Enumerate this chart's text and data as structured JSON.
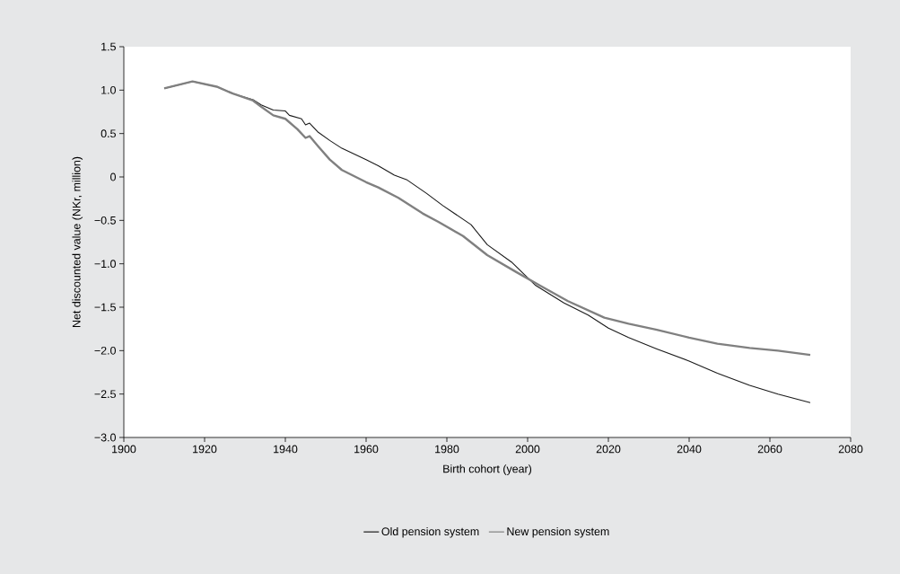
{
  "chart_data": {
    "type": "line",
    "xlabel": "Birth cohort (year)",
    "ylabel": "Net discounted value (NKr, million)",
    "xlim": [
      1900,
      2080
    ],
    "xticks": [
      1900,
      1920,
      1940,
      1960,
      1980,
      2000,
      2020,
      2040,
      2060,
      2080
    ],
    "ylim": [
      -3.0,
      1.5
    ],
    "yticks": [
      {
        "value": -3.0,
        "label": "−3.0"
      },
      {
        "value": -2.5,
        "label": "−2.5"
      },
      {
        "value": -2.0,
        "label": "−2.0"
      },
      {
        "value": -1.5,
        "label": "−1.5"
      },
      {
        "value": -1.0,
        "label": "−1.0"
      },
      {
        "value": -0.5,
        "label": "−0.5"
      },
      0,
      {
        "value": 0.5,
        "label": "0.5"
      },
      {
        "value": 1.0,
        "label": "1.0"
      },
      {
        "value": 1.5,
        "label": "1.5"
      }
    ],
    "grid": false,
    "legend": "bottom",
    "marker": "none",
    "line_style": "solid",
    "series": [
      {
        "name": "Old pension system",
        "color": "#1a1a1a",
        "x": [
          1910,
          1917,
          1923,
          1927,
          1932,
          1934,
          1937,
          1940,
          1941,
          1944,
          1945,
          1946,
          1948,
          1951,
          1954,
          1960,
          1963,
          1967,
          1970,
          1975,
          1979,
          1986,
          1990,
          1996,
          2002,
          2009,
          2015,
          2020,
          2025,
          2032,
          2040,
          2047,
          2055,
          2062,
          2070
        ],
        "values": [
          1.02,
          1.1,
          1.04,
          0.96,
          0.89,
          0.83,
          0.77,
          0.76,
          0.71,
          0.67,
          0.6,
          0.62,
          0.52,
          0.42,
          0.33,
          0.2,
          0.13,
          0.02,
          -0.03,
          -0.19,
          -0.33,
          -0.55,
          -0.78,
          -0.98,
          -1.25,
          -1.45,
          -1.59,
          -1.74,
          -1.85,
          -1.98,
          -2.12,
          -2.26,
          -2.4,
          -2.5,
          -2.6
        ]
      },
      {
        "name": "New pension system",
        "color": "#808080",
        "x": [
          1910,
          1917,
          1923,
          1927,
          1932,
          1934,
          1937,
          1940,
          1943,
          1945,
          1946,
          1948,
          1951,
          1954,
          1960,
          1963,
          1968,
          1970,
          1974,
          1978,
          1984,
          1990,
          1997,
          2003,
          2010,
          2019,
          2025,
          2032,
          2040,
          2047,
          2055,
          2062,
          2070
        ],
        "values": [
          1.02,
          1.1,
          1.04,
          0.96,
          0.88,
          0.81,
          0.71,
          0.67,
          0.55,
          0.45,
          0.47,
          0.36,
          0.2,
          0.08,
          -0.06,
          -0.12,
          -0.24,
          -0.3,
          -0.42,
          -0.52,
          -0.68,
          -0.9,
          -1.09,
          -1.25,
          -1.43,
          -1.62,
          -1.69,
          -1.76,
          -1.85,
          -1.92,
          -1.97,
          -2.0,
          -2.05
        ]
      }
    ]
  }
}
